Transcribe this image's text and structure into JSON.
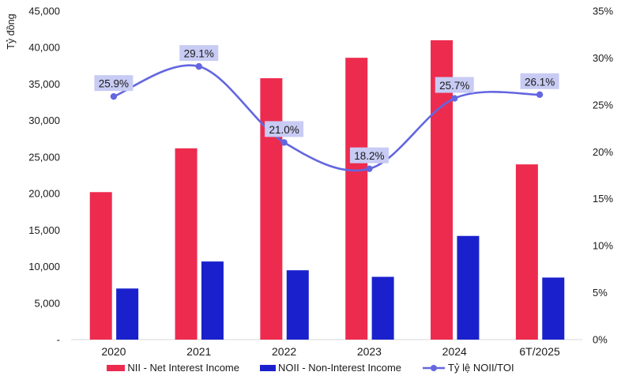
{
  "chart_data": {
    "type": "combo-bar-line",
    "categories": [
      "2020",
      "2021",
      "2022",
      "2023",
      "2024",
      "6T/2025"
    ],
    "series": [
      {
        "name": "NII - Net Interest Income",
        "type": "bar",
        "axis": "left",
        "color": "#ED2B4E",
        "values": [
          20200,
          26200,
          35800,
          38600,
          41000,
          24000
        ]
      },
      {
        "name": "NOII - Non-Interest Income",
        "type": "bar",
        "axis": "left",
        "color": "#1A21CC",
        "values": [
          7000,
          10700,
          9500,
          8600,
          14200,
          8500
        ]
      },
      {
        "name": "Tỷ lệ NOII/TOI",
        "type": "line",
        "axis": "right",
        "color": "#6366E0",
        "values": [
          25.9,
          29.1,
          21.0,
          18.2,
          25.7,
          26.1
        ],
        "data_labels": [
          "25.9%",
          "29.1%",
          "21.0%",
          "18.2%",
          "25.7%",
          "26.1%"
        ],
        "label_bg": "#C8CBF3",
        "label_text_color": "#000000"
      }
    ],
    "left_axis": {
      "title": "Tỷ đồng",
      "min": 0,
      "max": 45000,
      "step": 5000,
      "tick_labels": [
        "-",
        "5,000",
        "10,000",
        "15,000",
        "20,000",
        "25,000",
        "30,000",
        "35,000",
        "40,000",
        "45,000"
      ]
    },
    "right_axis": {
      "min": 0,
      "max": 35,
      "step": 5,
      "tick_labels": [
        "0%",
        "5%",
        "10%",
        "15%",
        "20%",
        "25%",
        "30%",
        "35%"
      ]
    },
    "axis_line_color": "#D9D9D9",
    "grid": false,
    "legend_position": "bottom"
  }
}
